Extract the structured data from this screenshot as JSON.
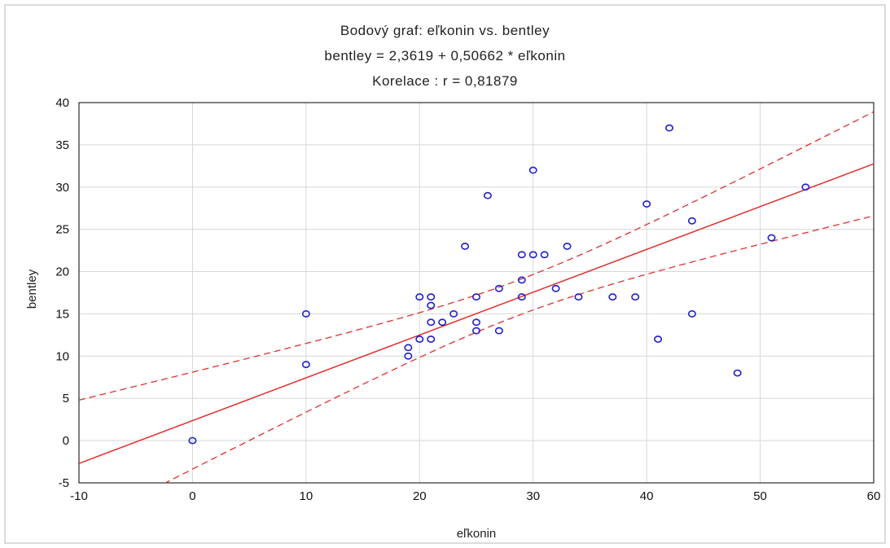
{
  "chart_data": {
    "type": "scatter",
    "title": "Bodový graf: eľkonin  vs. bentley",
    "subtitle": "bentley = 2,3619 + 0,50662 * eľkonin",
    "annotation": "Korelace :   r = 0,81879",
    "xlabel": "eľkonin",
    "ylabel": "bentley",
    "xlim": [
      -10,
      60
    ],
    "ylim": [
      -5,
      40
    ],
    "xticks": [
      -10,
      0,
      10,
      20,
      30,
      40,
      50,
      60
    ],
    "yticks": [
      -5,
      0,
      5,
      10,
      15,
      20,
      25,
      30,
      35,
      40
    ],
    "grid": true,
    "regression": {
      "intercept": 2.3619,
      "slope": 0.50662,
      "style": "solid",
      "color": "#e03030"
    },
    "confidence_band": {
      "style": "dashed",
      "color": "#e03030"
    },
    "marker_color": "#2020cc",
    "points": [
      {
        "x": 0,
        "y": 0
      },
      {
        "x": 10,
        "y": 9
      },
      {
        "x": 10,
        "y": 15
      },
      {
        "x": 19,
        "y": 10
      },
      {
        "x": 19,
        "y": 11
      },
      {
        "x": 20,
        "y": 12
      },
      {
        "x": 20,
        "y": 17
      },
      {
        "x": 21,
        "y": 12
      },
      {
        "x": 21,
        "y": 14
      },
      {
        "x": 21,
        "y": 16
      },
      {
        "x": 21,
        "y": 17
      },
      {
        "x": 22,
        "y": 14
      },
      {
        "x": 23,
        "y": 15
      },
      {
        "x": 24,
        "y": 23
      },
      {
        "x": 25,
        "y": 13
      },
      {
        "x": 25,
        "y": 14
      },
      {
        "x": 25,
        "y": 17
      },
      {
        "x": 26,
        "y": 29
      },
      {
        "x": 27,
        "y": 13
      },
      {
        "x": 27,
        "y": 18
      },
      {
        "x": 29,
        "y": 17
      },
      {
        "x": 29,
        "y": 19
      },
      {
        "x": 29,
        "y": 22
      },
      {
        "x": 30,
        "y": 22
      },
      {
        "x": 30,
        "y": 32
      },
      {
        "x": 31,
        "y": 22
      },
      {
        "x": 32,
        "y": 18
      },
      {
        "x": 33,
        "y": 23
      },
      {
        "x": 34,
        "y": 17
      },
      {
        "x": 37,
        "y": 17
      },
      {
        "x": 39,
        "y": 17
      },
      {
        "x": 40,
        "y": 28
      },
      {
        "x": 41,
        "y": 12
      },
      {
        "x": 42,
        "y": 37
      },
      {
        "x": 44,
        "y": 15
      },
      {
        "x": 44,
        "y": 26
      },
      {
        "x": 48,
        "y": 8
      },
      {
        "x": 51,
        "y": 24
      },
      {
        "x": 54,
        "y": 30
      }
    ]
  }
}
